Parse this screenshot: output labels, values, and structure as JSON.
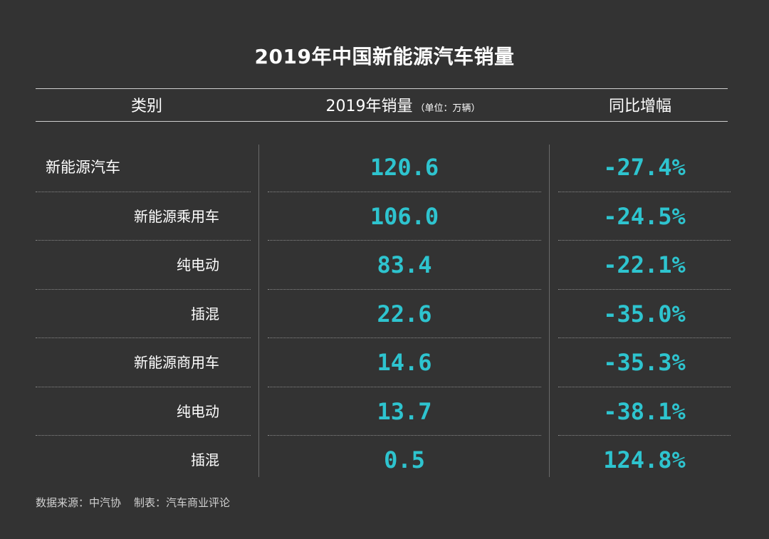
{
  "title": "2019年中国新能源汽车销量",
  "header": {
    "col_category": "类别",
    "col_sales": "2019年销量",
    "col_sales_unit": "（单位：万辆）",
    "col_growth": "同比增幅"
  },
  "colors": {
    "background": "#333333",
    "value_text": "#2ec4cf",
    "label_text": "#ffffff"
  },
  "chart_data": {
    "type": "table",
    "title": "2019年中国新能源汽车销量",
    "columns": [
      "类别",
      "2019年销量（单位：万辆）",
      "同比增幅"
    ],
    "rows": [
      {
        "category": "新能源汽车",
        "level": 0,
        "sales": "120.6",
        "growth": "-27.4%"
      },
      {
        "category": "新能源乘用车",
        "level": 1,
        "sales": "106.0",
        "growth": "-24.5%"
      },
      {
        "category": "纯电动",
        "level": 2,
        "sales": "83.4",
        "growth": "-22.1%"
      },
      {
        "category": "插混",
        "level": 2,
        "sales": "22.6",
        "growth": "-35.0%"
      },
      {
        "category": "新能源商用车",
        "level": 1,
        "sales": "14.6",
        "growth": "-35.3%"
      },
      {
        "category": "纯电动",
        "level": 2,
        "sales": "13.7",
        "growth": "-38.1%"
      },
      {
        "category": "插混",
        "level": 2,
        "sales": "0.5",
        "growth": "124.8%"
      }
    ]
  },
  "footer": {
    "source": "数据来源：中汽协",
    "maker": "制表：汽车商业评论"
  }
}
